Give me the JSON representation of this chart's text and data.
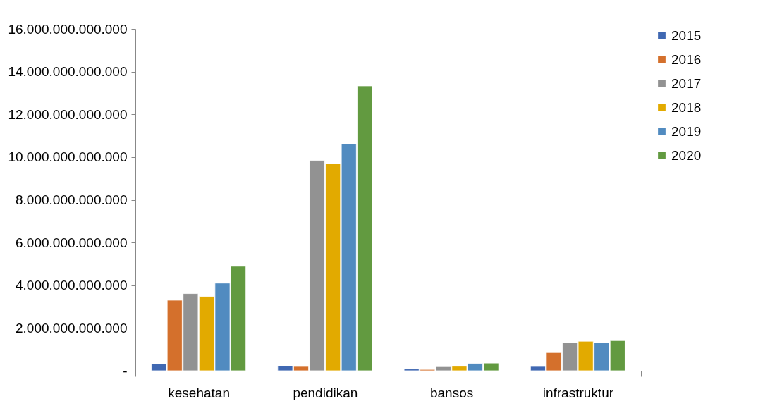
{
  "chart_data": {
    "type": "bar",
    "categories": [
      "kesehatan",
      "pendidikan",
      "bansos",
      "infrastruktur"
    ],
    "series": [
      {
        "name": "2015",
        "color": "#4068b2",
        "values": [
          330000000000,
          230000000000,
          80000000000,
          200000000000
        ]
      },
      {
        "name": "2016",
        "color": "#d4702c",
        "values": [
          3300000000000,
          200000000000,
          60000000000,
          850000000000
        ]
      },
      {
        "name": "2017",
        "color": "#929292",
        "values": [
          3610000000000,
          9850000000000,
          190000000000,
          1320000000000
        ]
      },
      {
        "name": "2018",
        "color": "#e2aa00",
        "values": [
          3480000000000,
          9690000000000,
          210000000000,
          1380000000000
        ]
      },
      {
        "name": "2019",
        "color": "#518bc0",
        "values": [
          4100000000000,
          10610000000000,
          340000000000,
          1310000000000
        ]
      },
      {
        "name": "2020",
        "color": "#629a40",
        "values": [
          4890000000000,
          13330000000000,
          360000000000,
          1410000000000
        ]
      }
    ],
    "ylim": [
      0,
      16000000000000
    ],
    "yticks": [
      {
        "value": 0,
        "label": "-"
      },
      {
        "value": 2000000000000,
        "label": "2.000.000.000.000"
      },
      {
        "value": 4000000000000,
        "label": "4.000.000.000.000"
      },
      {
        "value": 6000000000000,
        "label": "6.000.000.000.000"
      },
      {
        "value": 8000000000000,
        "label": "8.000.000.000.000"
      },
      {
        "value": 10000000000000,
        "label": "10.000.000.000.000"
      },
      {
        "value": 12000000000000,
        "label": "12.000.000.000.000"
      },
      {
        "value": 14000000000000,
        "label": "14.000.000.000.000"
      },
      {
        "value": 16000000000000,
        "label": "16.000.000.000.000"
      }
    ],
    "grid": false,
    "legend": "right"
  }
}
